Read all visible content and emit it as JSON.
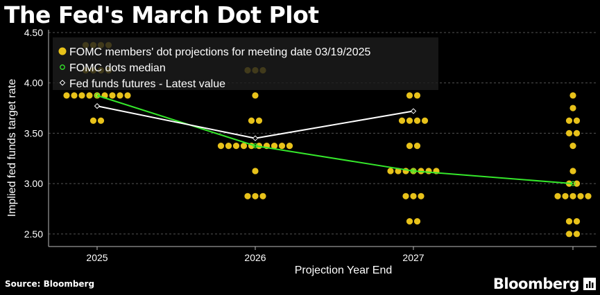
{
  "page": {
    "title": "The Fed's March Dot Plot",
    "source": "Source: Bloomberg",
    "brand": "Bloomberg"
  },
  "colors": {
    "background": "#000000",
    "dots": "#e8c21a",
    "median": "#35e82b",
    "futures": "#ffffff",
    "grid": "#555555",
    "legend_bg": "#1c1c1c"
  },
  "chart_data": {
    "type": "scatter",
    "title": "The Fed's March Dot Plot",
    "xlabel": "Projection Year End",
    "ylabel": "Implied fed funds target rate",
    "categories": [
      "2025",
      "2026",
      "2027",
      ""
    ],
    "ylim": [
      2.375,
      4.5
    ],
    "yticks": [
      2.5,
      3.0,
      3.5,
      4.0,
      4.5
    ],
    "ytick_labels": [
      "2.50",
      "3.00",
      "3.50",
      "4.00",
      "4.50"
    ],
    "grid": "horizontal dashed",
    "legend_placement": "top-left",
    "legend": [
      "FOMC members' dot projections for meeting date 03/19/2025",
      "FOMC dots median",
      "Fed funds futures - Latest value"
    ],
    "dots": [
      {
        "category": "2025",
        "counts": {
          "4.375": 4,
          "4.125": 4,
          "3.875": 9,
          "3.625": 2
        }
      },
      {
        "category": "2026",
        "counts": {
          "4.125": 3,
          "3.875": 1,
          "3.625": 2,
          "3.375": 10,
          "3.125": 1,
          "2.875": 3
        }
      },
      {
        "category": "2027",
        "counts": {
          "3.875": 2,
          "3.625": 4,
          "3.375": 2,
          "3.125": 7,
          "2.875": 3,
          "2.625": 2
        }
      },
      {
        "category": "",
        "counts": {
          "3.875": 1,
          "3.75": 1,
          "3.625": 2,
          "3.5": 2,
          "3.375": 1,
          "3.125": 1,
          "3.0": 2,
          "2.875": 5,
          "2.625": 2,
          "2.5": 2
        }
      }
    ],
    "series": [
      {
        "name": "FOMC dots median",
        "values": [
          3.875,
          3.375,
          3.125,
          3.0
        ]
      },
      {
        "name": "Fed funds futures - Latest value",
        "values": [
          3.77,
          3.45,
          3.72,
          null
        ]
      }
    ]
  }
}
